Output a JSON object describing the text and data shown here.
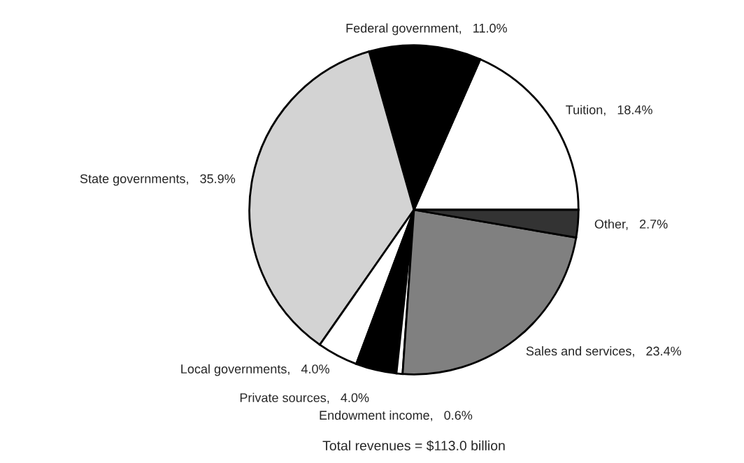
{
  "chart_data": {
    "type": "pie",
    "categories": [
      "Tuition,   18.4%",
      "Federal government,   11.0%",
      "State governments,   35.9%",
      "Local governments,   4.0%",
      "Private sources,   4.0%",
      "Endowment income,   0.6%",
      "Sales and services,   23.4%",
      "Other,   2.7%"
    ],
    "values": [
      18.4,
      11.0,
      35.9,
      4.0,
      4.0,
      0.6,
      23.4,
      2.7
    ],
    "colors": [
      "#ffffff",
      "#000000",
      "#d3d3d3",
      "#ffffff",
      "#000000",
      "#ffffff",
      "#808080",
      "#333333"
    ],
    "annotations": [
      "Total revenues = $113.0 billion"
    ]
  }
}
